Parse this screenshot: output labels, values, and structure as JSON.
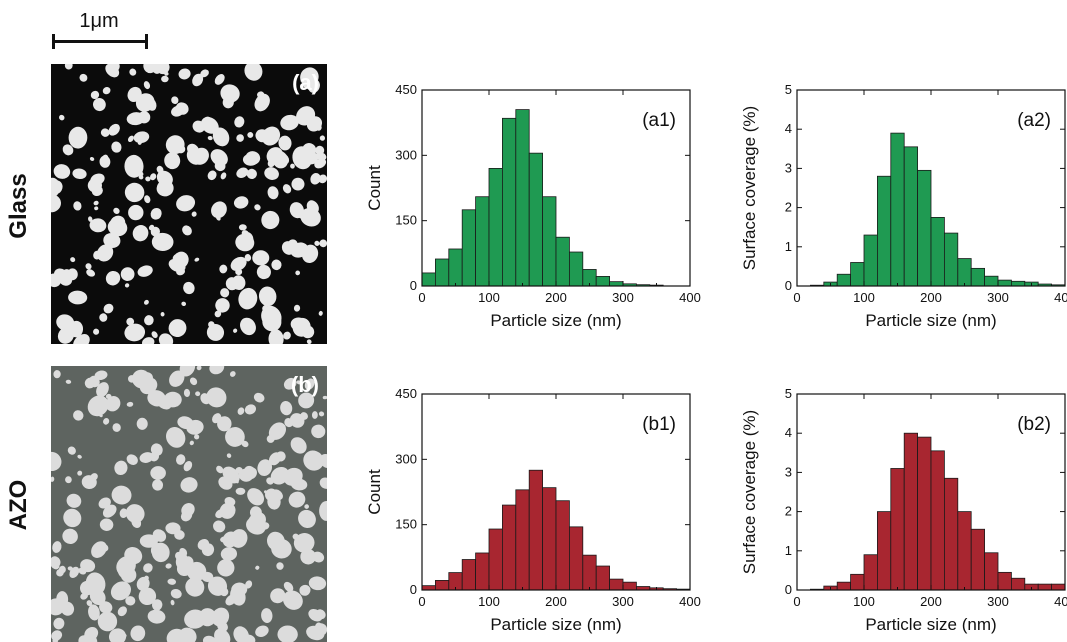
{
  "scale_bar": {
    "label": "1μm"
  },
  "rows": [
    {
      "label": "Glass",
      "micrograph_label": "(a)",
      "background": "#0b0b0b"
    },
    {
      "label": "AZO",
      "micrograph_label": "(b)",
      "background": "#5e6460"
    }
  ],
  "colors": {
    "green": "#1f9a52",
    "red": "#a82630"
  },
  "chart_data": [
    {
      "id": "a1",
      "type": "bar",
      "panel_label": "(a1)",
      "xlabel": "Particle size (nm)",
      "ylabel": "Count",
      "xlim": [
        0,
        400
      ],
      "ylim": [
        0,
        450
      ],
      "yticks": [
        0,
        150,
        300,
        450
      ],
      "xticks": [
        0,
        100,
        200,
        300,
        400
      ],
      "bin_width": 20,
      "color": "#1f9a52",
      "x": [
        10,
        30,
        50,
        70,
        90,
        110,
        130,
        150,
        170,
        190,
        210,
        230,
        250,
        270,
        290,
        310,
        330,
        350,
        370,
        390
      ],
      "values": [
        30,
        62,
        85,
        175,
        205,
        270,
        385,
        405,
        305,
        205,
        112,
        78,
        38,
        22,
        10,
        5,
        3,
        2,
        0,
        0
      ]
    },
    {
      "id": "a2",
      "type": "bar",
      "panel_label": "(a2)",
      "xlabel": "Particle size (nm)",
      "ylabel": "Surface coverage (%)",
      "xlim": [
        0,
        400
      ],
      "ylim": [
        0,
        5
      ],
      "yticks": [
        0,
        1,
        2,
        3,
        4,
        5
      ],
      "xticks": [
        0,
        100,
        200,
        300,
        400
      ],
      "bin_width": 20,
      "color": "#1f9a52",
      "x": [
        10,
        30,
        50,
        70,
        90,
        110,
        130,
        150,
        170,
        190,
        210,
        230,
        250,
        270,
        290,
        310,
        330,
        350,
        370,
        390
      ],
      "values": [
        0,
        0.02,
        0.1,
        0.3,
        0.6,
        1.3,
        2.8,
        3.9,
        3.55,
        2.95,
        1.75,
        1.35,
        0.7,
        0.45,
        0.25,
        0.15,
        0.12,
        0.1,
        0.05,
        0.03
      ]
    },
    {
      "id": "b1",
      "type": "bar",
      "panel_label": "(b1)",
      "xlabel": "Particle size (nm)",
      "ylabel": "Count",
      "xlim": [
        0,
        400
      ],
      "ylim": [
        0,
        450
      ],
      "yticks": [
        0,
        150,
        300,
        450
      ],
      "xticks": [
        0,
        100,
        200,
        300,
        400
      ],
      "bin_width": 20,
      "color": "#a82630",
      "x": [
        10,
        30,
        50,
        70,
        90,
        110,
        130,
        150,
        170,
        190,
        210,
        230,
        250,
        270,
        290,
        310,
        330,
        350,
        370,
        390
      ],
      "values": [
        10,
        22,
        40,
        70,
        85,
        140,
        195,
        230,
        275,
        235,
        205,
        145,
        80,
        55,
        25,
        18,
        8,
        5,
        3,
        2
      ]
    },
    {
      "id": "b2",
      "type": "bar",
      "panel_label": "(b2)",
      "xlabel": "Particle size (nm)",
      "ylabel": "Surface coverage (%)",
      "xlim": [
        0,
        400
      ],
      "ylim": [
        0,
        5
      ],
      "yticks": [
        0,
        1,
        2,
        3,
        4,
        5
      ],
      "xticks": [
        0,
        100,
        200,
        300,
        400
      ],
      "bin_width": 20,
      "color": "#a82630",
      "x": [
        10,
        30,
        50,
        70,
        90,
        110,
        130,
        150,
        170,
        190,
        210,
        230,
        250,
        270,
        290,
        310,
        330,
        350,
        370,
        390
      ],
      "values": [
        0,
        0.02,
        0.1,
        0.2,
        0.4,
        0.9,
        2.0,
        3.1,
        4.0,
        3.9,
        3.55,
        2.85,
        2.0,
        1.55,
        0.95,
        0.45,
        0.3,
        0.15,
        0.15,
        0.15
      ]
    }
  ]
}
